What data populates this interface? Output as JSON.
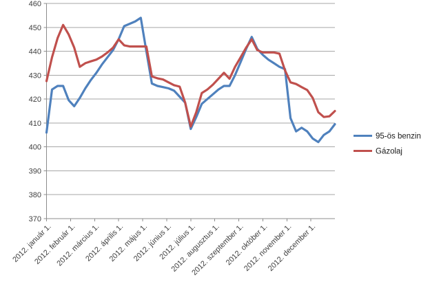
{
  "chart_data": {
    "type": "line",
    "title": "",
    "x_tick_labels": [
      "2012. január 1.",
      "2012. február 1.",
      "2012. március 1.",
      "2012. április 1.",
      "2012. május 1.",
      "2012. június 1.",
      "2012. július 1.",
      "2012. augusztus 1.",
      "2012. szeptember 1.",
      "2012. október 1.",
      "2012. november 1.",
      "2012. december 1."
    ],
    "y_ticks": [
      370,
      380,
      390,
      400,
      410,
      420,
      430,
      440,
      450,
      460
    ],
    "ylim": [
      370,
      460
    ],
    "grid": "horizontal",
    "legend_position": "right",
    "sampling": "weekly points, evenly spaced across 2012",
    "series": [
      {
        "name": "95-ös benzin",
        "color": "#4F81BD",
        "values": [
          406,
          424,
          425.5,
          425.5,
          419.5,
          417,
          420.5,
          424.5,
          428,
          431,
          434.5,
          437.5,
          440.5,
          445,
          450.5,
          451.5,
          452.5,
          454,
          440,
          426.5,
          425.5,
          425,
          424.5,
          423.5,
          421,
          418.5,
          407.5,
          412.5,
          418,
          420,
          422,
          424,
          425.5,
          425.5,
          430,
          435.5,
          441,
          446,
          441,
          438.5,
          436.5,
          435,
          433.5,
          432.5,
          412,
          406.5,
          408,
          406.5,
          403.5,
          402,
          405,
          406.5,
          409.5
        ]
      },
      {
        "name": "Gázolaj",
        "color": "#C0504D",
        "values": [
          427.5,
          437.5,
          445.5,
          451,
          447,
          441.5,
          433.5,
          435,
          435.8,
          436.5,
          437.8,
          439.5,
          441.5,
          445,
          442.5,
          442,
          442,
          442,
          442,
          429.5,
          428.7,
          428.2,
          427,
          425.8,
          425.2,
          418.5,
          408.5,
          414.5,
          422.5,
          424,
          426,
          428.5,
          431,
          428.5,
          433.5,
          437.5,
          441.5,
          445,
          440.5,
          439.5,
          439.5,
          439.5,
          439,
          432,
          427,
          426.3,
          425,
          423.8,
          420.5,
          414.5,
          412.5,
          412.8,
          415
        ]
      }
    ]
  },
  "colors": {
    "background": "#FFFFFF",
    "gridline": "#A6A6A6",
    "axis": "#8C8C8C",
    "axis_text": "#404040"
  }
}
